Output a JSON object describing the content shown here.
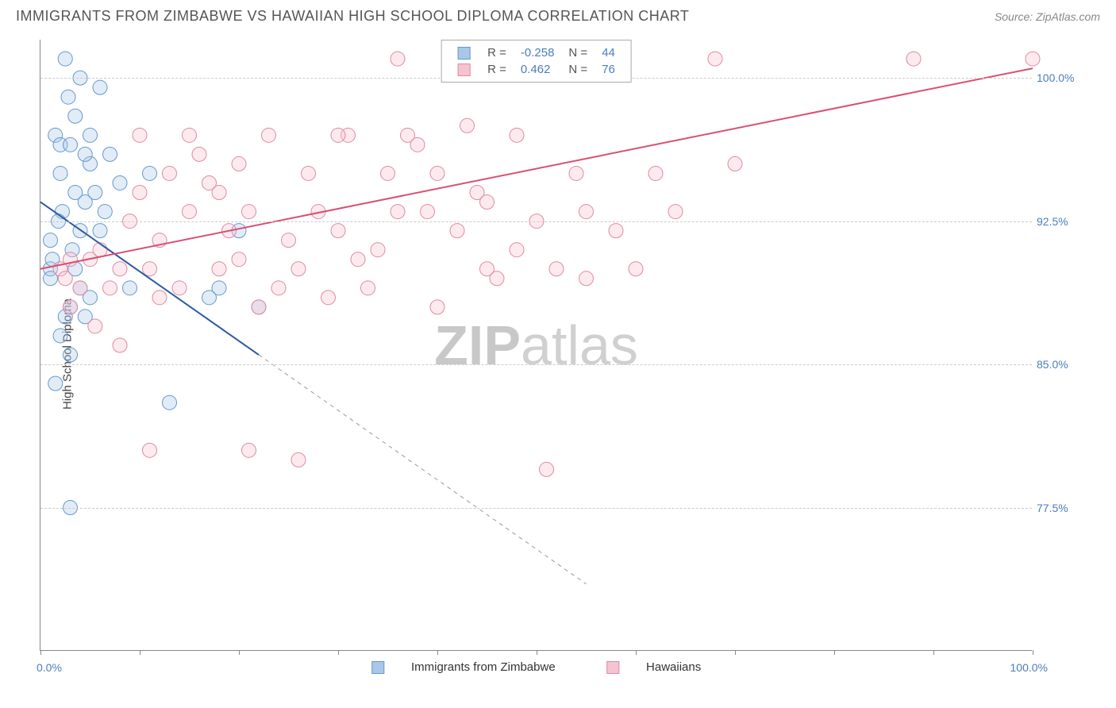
{
  "title": "IMMIGRANTS FROM ZIMBABWE VS HAWAIIAN HIGH SCHOOL DIPLOMA CORRELATION CHART",
  "source": "Source: ZipAtlas.com",
  "ylabel": "High School Diploma",
  "watermark_bold": "ZIP",
  "watermark_light": "atlas",
  "chart": {
    "type": "scatter",
    "background_color": "#ffffff",
    "grid_color": "#cccccc",
    "axis_color": "#888888",
    "xlim": [
      0,
      100
    ],
    "ylim": [
      70,
      102
    ],
    "xticks": [
      0,
      10,
      20,
      30,
      40,
      50,
      60,
      70,
      80,
      90,
      100
    ],
    "yticks": [
      77.5,
      85.0,
      92.5,
      100.0
    ],
    "ytick_labels": [
      "77.5%",
      "85.0%",
      "92.5%",
      "100.0%"
    ],
    "x_left_label": "0.0%",
    "x_right_label": "100.0%",
    "label_color": "#4a7ebb",
    "marker_radius": 9,
    "marker_opacity": 0.35,
    "line_width": 2
  },
  "series": [
    {
      "name": "Immigrants from Zimbabwe",
      "color_fill": "#a8c8e8",
      "color_stroke": "#6699cc",
      "line_color": "#2c5aa0",
      "R": "-0.258",
      "N": "44",
      "trend": {
        "x1": 0,
        "y1": 93.5,
        "x2": 22,
        "y2": 85.5,
        "dash_to_x": 55,
        "dash_to_y": 73.5
      },
      "points": [
        [
          1,
          90
        ],
        [
          1,
          89.5
        ],
        [
          1.2,
          90.5
        ],
        [
          1.5,
          97
        ],
        [
          2,
          95
        ],
        [
          2,
          96.5
        ],
        [
          2.2,
          93
        ],
        [
          2.5,
          101
        ],
        [
          2.8,
          99
        ],
        [
          3,
          96.5
        ],
        [
          3,
          88
        ],
        [
          3.2,
          91
        ],
        [
          3.5,
          94
        ],
        [
          3.5,
          98
        ],
        [
          4,
          89
        ],
        [
          4,
          92
        ],
        [
          4.5,
          93.5
        ],
        [
          5,
          95.5
        ],
        [
          5,
          97
        ],
        [
          1.5,
          84
        ],
        [
          2,
          86.5
        ],
        [
          2.5,
          87.5
        ],
        [
          3,
          85.5
        ],
        [
          3.5,
          90
        ],
        [
          1,
          91.5
        ],
        [
          1.8,
          92.5
        ],
        [
          4,
          100
        ],
        [
          4.5,
          96
        ],
        [
          5.5,
          94
        ],
        [
          6,
          92
        ],
        [
          6.5,
          93
        ],
        [
          7,
          96
        ],
        [
          4.5,
          87.5
        ],
        [
          5,
          88.5
        ],
        [
          3,
          77.5
        ],
        [
          6,
          99.5
        ],
        [
          8,
          94.5
        ],
        [
          9,
          89
        ],
        [
          11,
          95
        ],
        [
          13,
          83
        ],
        [
          17,
          88.5
        ],
        [
          18,
          89
        ],
        [
          20,
          92
        ],
        [
          22,
          88
        ]
      ]
    },
    {
      "name": "Hawaiians",
      "color_fill": "#f5c4d0",
      "color_stroke": "#e08aa0",
      "line_color": "#d94f70",
      "R": "0.462",
      "N": "76",
      "trend": {
        "x1": 0,
        "y1": 90,
        "x2": 100,
        "y2": 100.5
      },
      "points": [
        [
          2,
          90
        ],
        [
          2.5,
          89.5
        ],
        [
          3,
          90.5
        ],
        [
          3,
          88
        ],
        [
          4,
          89
        ],
        [
          5,
          90.5
        ],
        [
          5.5,
          87
        ],
        [
          6,
          91
        ],
        [
          7,
          89
        ],
        [
          8,
          90
        ],
        [
          8,
          86
        ],
        [
          9,
          92.5
        ],
        [
          10,
          97
        ],
        [
          10,
          94
        ],
        [
          11,
          90
        ],
        [
          12,
          88.5
        ],
        [
          12,
          91.5
        ],
        [
          13,
          95
        ],
        [
          14,
          89
        ],
        [
          15,
          97
        ],
        [
          15,
          93
        ],
        [
          16,
          96
        ],
        [
          17,
          94.5
        ],
        [
          18,
          94
        ],
        [
          18,
          90
        ],
        [
          19,
          92
        ],
        [
          20,
          95.5
        ],
        [
          20,
          90.5
        ],
        [
          21,
          93
        ],
        [
          22,
          88
        ],
        [
          23,
          97
        ],
        [
          24,
          89
        ],
        [
          25,
          91.5
        ],
        [
          26,
          90
        ],
        [
          27,
          95
        ],
        [
          28,
          93
        ],
        [
          29,
          88.5
        ],
        [
          30,
          92
        ],
        [
          31,
          97
        ],
        [
          32,
          90.5
        ],
        [
          33,
          89
        ],
        [
          34,
          91
        ],
        [
          35,
          95
        ],
        [
          36,
          101
        ],
        [
          37,
          97
        ],
        [
          38,
          96.5
        ],
        [
          39,
          93
        ],
        [
          40,
          88
        ],
        [
          42,
          92
        ],
        [
          43,
          97.5
        ],
        [
          44,
          94
        ],
        [
          45,
          90
        ],
        [
          46,
          89.5
        ],
        [
          48,
          97
        ],
        [
          50,
          92.5
        ],
        [
          52,
          90
        ],
        [
          54,
          95
        ],
        [
          55,
          93
        ],
        [
          58,
          92
        ],
        [
          60,
          90
        ],
        [
          62,
          95
        ],
        [
          51,
          79.5
        ],
        [
          11,
          80.5
        ],
        [
          21,
          80.5
        ],
        [
          26,
          80
        ],
        [
          68,
          101
        ],
        [
          70,
          95.5
        ],
        [
          88,
          101
        ],
        [
          100,
          101
        ],
        [
          45,
          93.5
        ],
        [
          36,
          93
        ],
        [
          30,
          97
        ],
        [
          40,
          95
        ],
        [
          48,
          91
        ],
        [
          55,
          89.5
        ],
        [
          64,
          93
        ]
      ]
    }
  ],
  "legend_top": {
    "R_label": "R =",
    "N_label": "N ="
  },
  "legend_bottom": {
    "items": [
      "Immigrants from Zimbabwe",
      "Hawaiians"
    ]
  }
}
